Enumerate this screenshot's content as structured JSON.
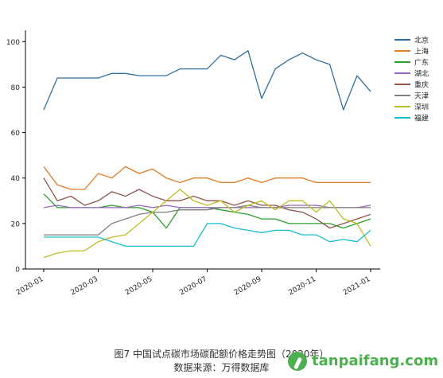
{
  "chart_data": {
    "type": "line",
    "title": "",
    "xlabel": "",
    "ylabel": "",
    "ylim": [
      0,
      105
    ],
    "yticks": [
      0,
      20,
      40,
      60,
      80,
      100
    ],
    "xticks": [
      "2020-01",
      "2020-03",
      "2020-05",
      "2020-07",
      "2020-09",
      "2020-11",
      "2021-01"
    ],
    "legend_position": "right",
    "grid": false,
    "x": [
      "2020-01",
      "2020-01-15",
      "2020-02",
      "2020-02-15",
      "2020-03",
      "2020-03-15",
      "2020-04",
      "2020-04-15",
      "2020-05",
      "2020-05-15",
      "2020-06",
      "2020-06-15",
      "2020-07",
      "2020-07-15",
      "2020-08",
      "2020-08-15",
      "2020-09",
      "2020-09-15",
      "2020-10",
      "2020-10-15",
      "2020-11",
      "2020-11-15",
      "2020-12",
      "2020-12-15",
      "2021-01"
    ],
    "series": [
      {
        "name": "北京",
        "color": "#2f6f9f",
        "values": [
          70,
          84,
          84,
          84,
          84,
          86,
          86,
          85,
          85,
          85,
          88,
          88,
          88,
          94,
          92,
          96,
          75,
          88,
          92,
          95,
          92,
          90,
          70,
          85,
          78
        ]
      },
      {
        "name": "上海",
        "color": "#e07b24",
        "values": [
          45,
          37,
          35,
          35,
          42,
          40,
          45,
          42,
          44,
          40,
          38,
          40,
          40,
          38,
          38,
          40,
          38,
          40,
          40,
          40,
          38,
          38,
          38,
          38,
          38
        ]
      },
      {
        "name": "广东",
        "color": "#2ca02c",
        "values": [
          33,
          27,
          27,
          27,
          27,
          28,
          27,
          27,
          25,
          18,
          27,
          27,
          27,
          26,
          25,
          24,
          22,
          22,
          20,
          20,
          20,
          20,
          18,
          20,
          22
        ]
      },
      {
        "name": "湖北",
        "color": "#9467bd",
        "values": [
          27,
          28,
          27,
          27,
          27,
          27,
          27,
          28,
          27,
          28,
          27,
          27,
          27,
          27,
          27,
          27,
          27,
          27,
          28,
          28,
          28,
          27,
          27,
          27,
          28
        ]
      },
      {
        "name": "重庆",
        "color": "#8c564b",
        "values": [
          40,
          30,
          32,
          28,
          30,
          34,
          32,
          35,
          32,
          30,
          30,
          32,
          30,
          30,
          28,
          30,
          28,
          28,
          26,
          25,
          22,
          18,
          20,
          22,
          24
        ]
      },
      {
        "name": "天津",
        "color": "#7f7f7f",
        "values": [
          15,
          15,
          15,
          15,
          15,
          20,
          22,
          24,
          25,
          25,
          26,
          26,
          26,
          27,
          27,
          28,
          27,
          27,
          27,
          27,
          27,
          27,
          27,
          27,
          27
        ]
      },
      {
        "name": "深圳",
        "color": "#bcbd22",
        "values": [
          5,
          7,
          8,
          8,
          12,
          14,
          15,
          20,
          25,
          30,
          35,
          30,
          28,
          30,
          25,
          28,
          30,
          26,
          30,
          30,
          25,
          30,
          22,
          20,
          10
        ]
      },
      {
        "name": "福建",
        "color": "#17becf",
        "values": [
          14,
          14,
          14,
          14,
          14,
          12,
          10,
          10,
          10,
          10,
          10,
          10,
          20,
          20,
          18,
          17,
          16,
          17,
          17,
          15,
          15,
          12,
          13,
          12,
          17
        ]
      }
    ]
  },
  "caption": {
    "line1": "图7 中国试点碳市场碳配额价格走势图（2020年）",
    "line2": "数据来源：万得数据库"
  },
  "watermark": {
    "text": "tanpaifang.com",
    "icon": "leaf-logo-icon"
  }
}
